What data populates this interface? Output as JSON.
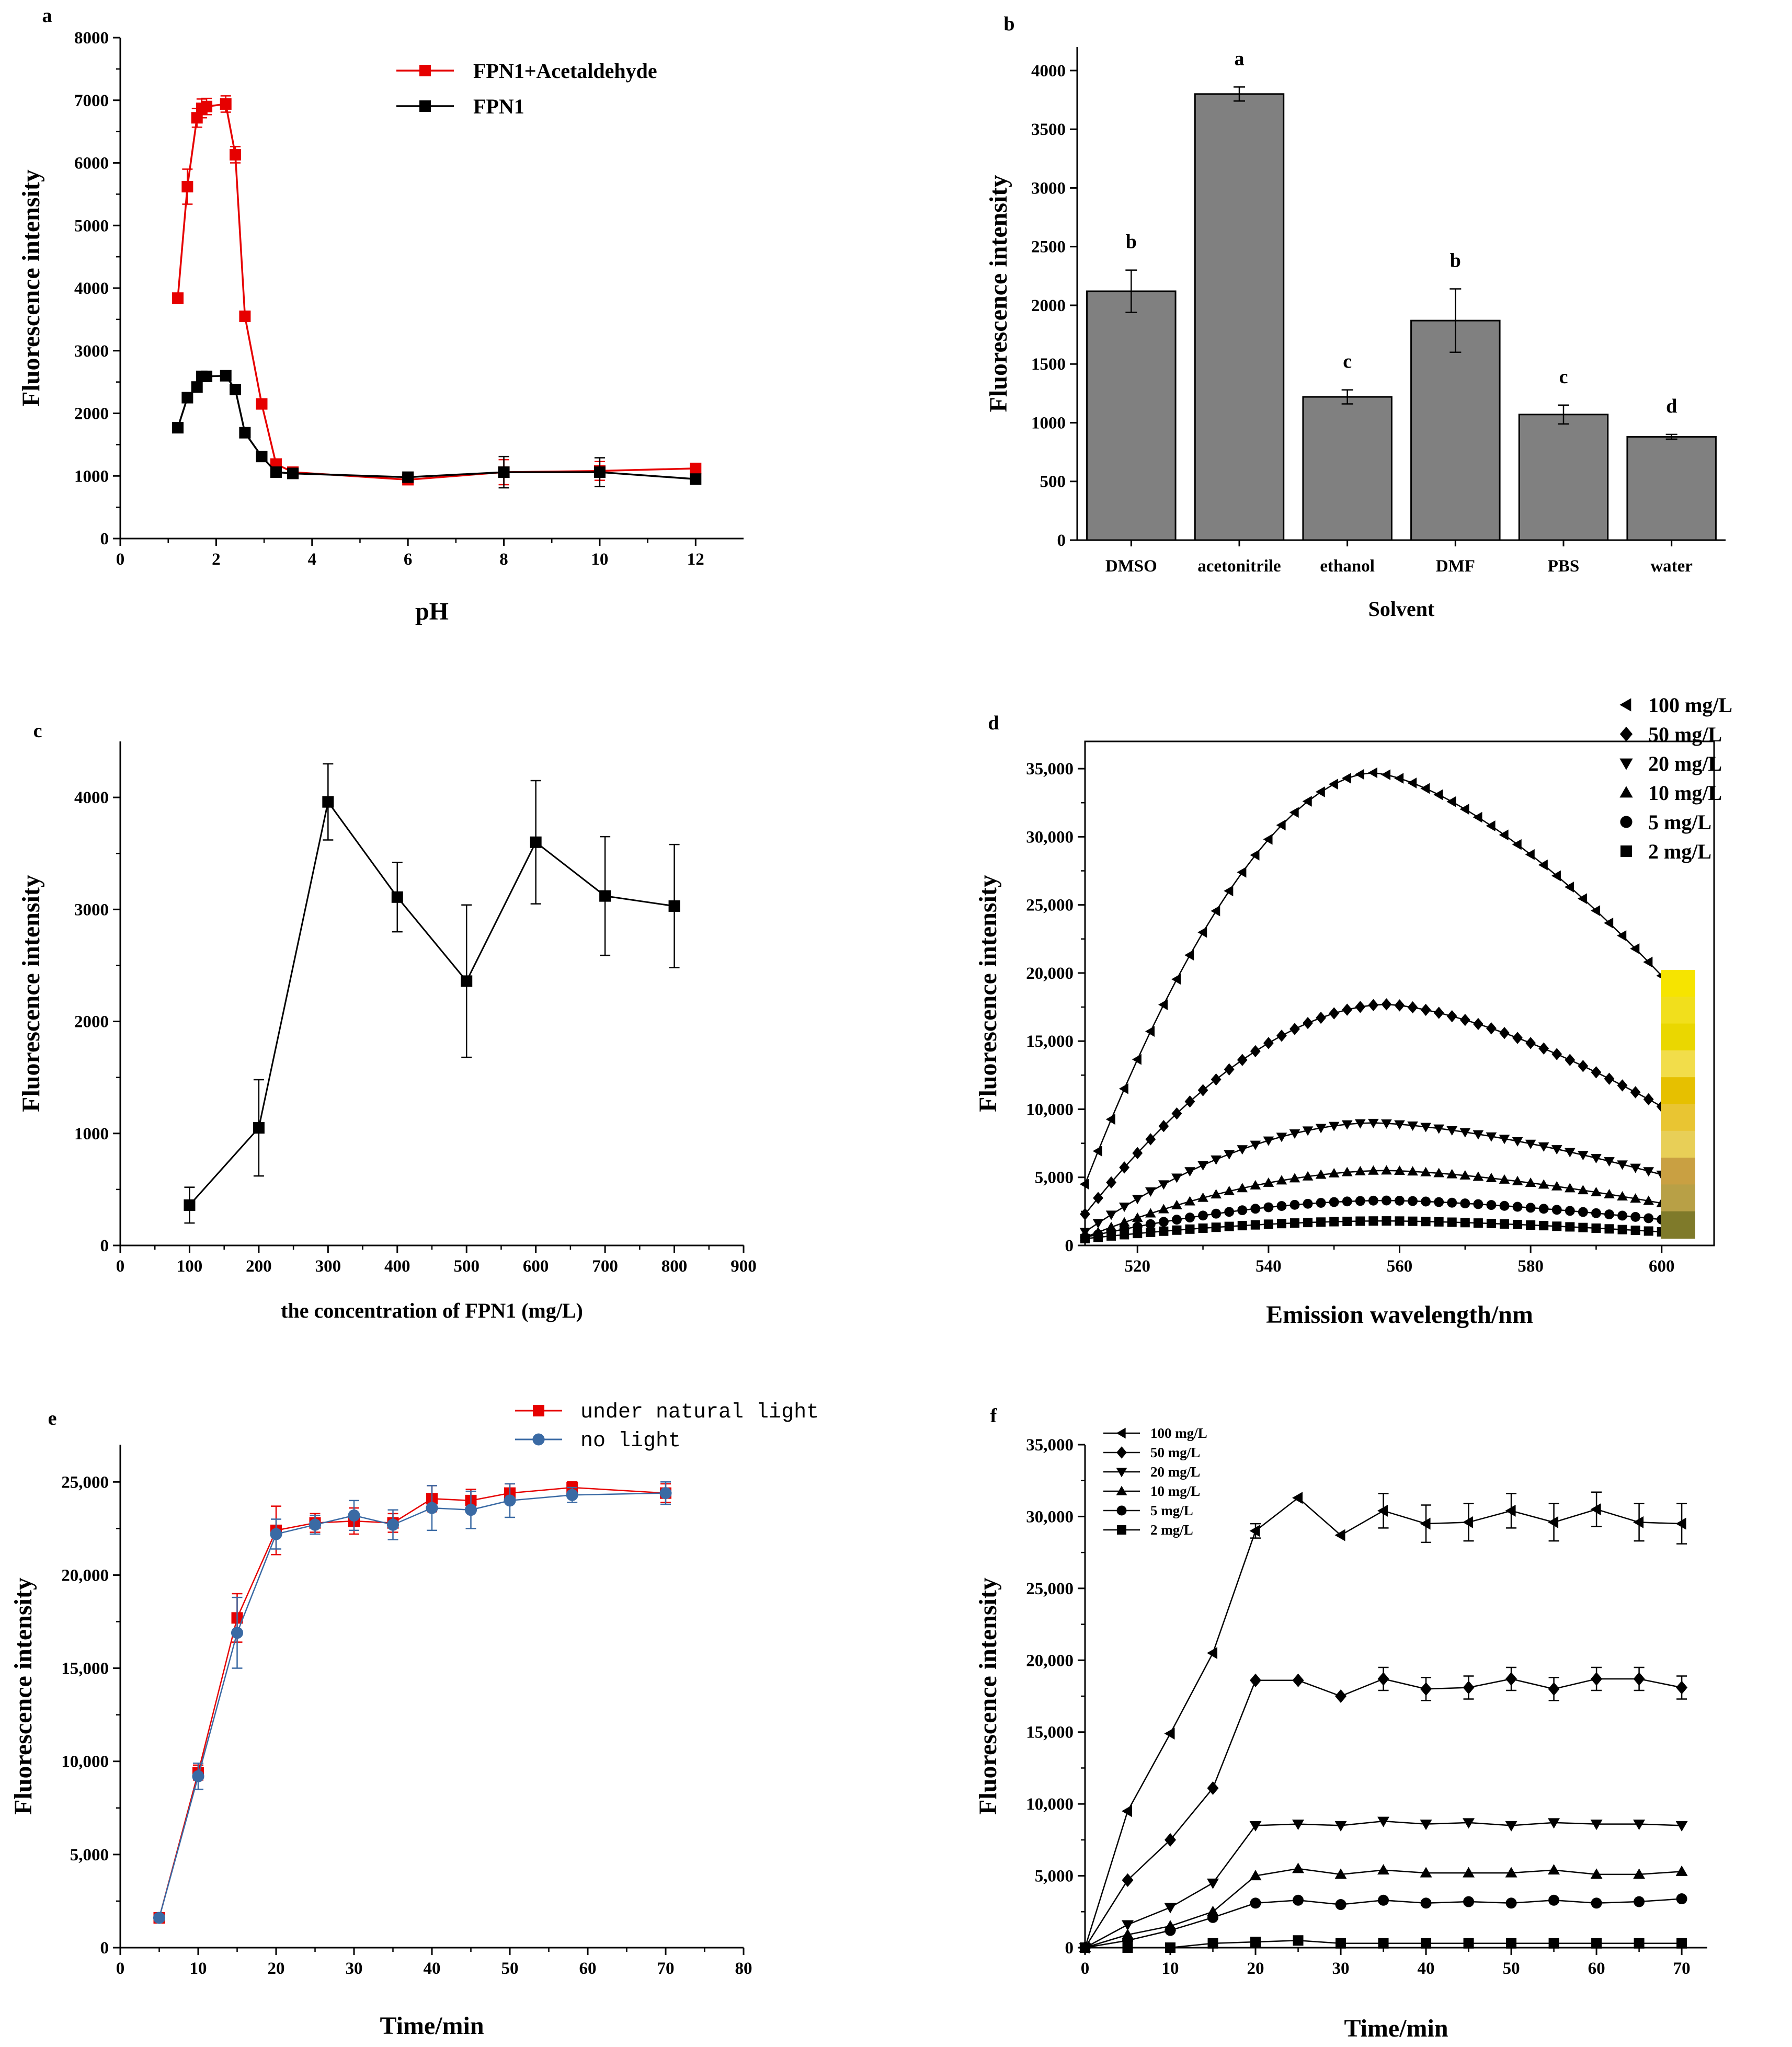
{
  "chart_data": [
    {
      "panel": "a",
      "type": "line",
      "xlabel": "pH",
      "ylabel": "Fluorescence intensity",
      "xlim": [
        0,
        13
      ],
      "ylim": [
        0,
        8000
      ],
      "xticks": [
        0,
        2,
        4,
        6,
        8,
        10,
        12
      ],
      "yticks": [
        0,
        1000,
        2000,
        3000,
        4000,
        5000,
        6000,
        7000,
        8000
      ],
      "legend_position": "top-right",
      "series": [
        {
          "name": "FPN1+Acetaldehyde",
          "color": "#e60000",
          "marker": "square",
          "x": [
            1.2,
            1.4,
            1.6,
            1.7,
            1.8,
            2.2,
            2.4,
            2.6,
            2.95,
            3.25,
            3.6,
            6,
            8,
            10,
            12
          ],
          "y": [
            3840,
            5620,
            6720,
            6870,
            6900,
            6940,
            6130,
            3550,
            2150,
            1190,
            1060,
            940,
            1060,
            1080,
            1120
          ],
          "err": [
            0,
            280,
            150,
            150,
            130,
            130,
            130,
            0,
            0,
            0,
            0,
            70,
            200,
            150,
            0
          ]
        },
        {
          "name": "FPN1",
          "color": "#000000",
          "marker": "square",
          "x": [
            1.2,
            1.4,
            1.6,
            1.7,
            1.8,
            2.2,
            2.4,
            2.6,
            2.95,
            3.25,
            3.6,
            6,
            8,
            10,
            12
          ],
          "y": [
            1770,
            2250,
            2420,
            2590,
            2590,
            2600,
            2380,
            1690,
            1310,
            1060,
            1040,
            980,
            1060,
            1060,
            950
          ],
          "err": [
            0,
            0,
            0,
            0,
            0,
            0,
            0,
            0,
            0,
            0,
            0,
            0,
            250,
            230,
            0
          ]
        }
      ]
    },
    {
      "panel": "b",
      "type": "bar",
      "xlabel": "Solvent",
      "ylabel": "Fluorescence intensity",
      "ylim": [
        0,
        4200
      ],
      "yticks": [
        0,
        500,
        1000,
        1500,
        2000,
        2500,
        3000,
        3500,
        4000
      ],
      "categories": [
        "DMSO",
        "acetonitrile",
        "ethanol",
        "DMF",
        "PBS",
        "water"
      ],
      "values": [
        2120,
        3800,
        1220,
        1870,
        1070,
        880
      ],
      "errors": [
        180,
        60,
        60,
        270,
        80,
        20
      ],
      "labels": [
        "b",
        "a",
        "c",
        "b",
        "c",
        "d"
      ],
      "color": "#808080"
    },
    {
      "panel": "c",
      "type": "line",
      "xlabel": "the concentration of FPN1 (mg/L)",
      "ylabel": "Fluorescence intensity",
      "xlim": [
        0,
        900
      ],
      "ylim": [
        0,
        4500
      ],
      "xticks": [
        0,
        100,
        200,
        300,
        400,
        500,
        600,
        700,
        800,
        900
      ],
      "yticks": [
        0,
        1000,
        2000,
        3000,
        4000
      ],
      "series": [
        {
          "color": "#000000",
          "marker": "square",
          "x": [
            100,
            200,
            300,
            400,
            500,
            600,
            700,
            800
          ],
          "y": [
            360,
            1050,
            3960,
            3110,
            2360,
            3600,
            3120,
            3030
          ],
          "err": [
            160,
            430,
            340,
            310,
            680,
            550,
            530,
            550
          ]
        }
      ]
    },
    {
      "panel": "d",
      "type": "scatter",
      "xlabel": "Emission wavelength/nm",
      "ylabel": "Fluorescence intensity",
      "xlim": [
        512,
        608
      ],
      "ylim": [
        0,
        37000
      ],
      "xticks": [
        520,
        540,
        560,
        580,
        600
      ],
      "yticks": [
        0,
        5000,
        10000,
        15000,
        20000,
        25000,
        30000,
        35000
      ],
      "ytick_labels": [
        "0",
        "5,000",
        "10,000",
        "15,000",
        "20,000",
        "25,000",
        "30,000",
        "35,000"
      ],
      "legend_position": "top-right",
      "x_start": 512,
      "x_step": 2,
      "series": [
        {
          "name": "100 mg/L",
          "marker": "triangle-left",
          "peak": 34700,
          "peak_x": 556,
          "left_value": 4500,
          "right_value": 19800
        },
        {
          "name": "50 mg/L",
          "marker": "diamond",
          "peak": 17700,
          "peak_x": 558,
          "left_value": 2300,
          "right_value": 10200
        },
        {
          "name": "20 mg/L",
          "marker": "triangle-down",
          "peak": 9000,
          "peak_x": 556,
          "left_value": 1000,
          "right_value": 5200
        },
        {
          "name": "10 mg/L",
          "marker": "triangle-up",
          "peak": 5500,
          "peak_x": 558,
          "left_value": 600,
          "right_value": 3100
        },
        {
          "name": "5 mg/L",
          "marker": "circle",
          "peak": 3300,
          "peak_x": 558,
          "left_value": 600,
          "right_value": 1900
        },
        {
          "name": "2 mg/L",
          "marker": "square",
          "peak": 1800,
          "peak_x": 558,
          "left_value": 500,
          "right_value": 1000
        }
      ],
      "swatch_colors": [
        "#f6e400",
        "#f1df1c",
        "#ead700",
        "#f2dd4a",
        "#e6c000",
        "#e9c532",
        "#e8cf57",
        "#c9a042",
        "#b8a046",
        "#7f7a2a"
      ]
    },
    {
      "panel": "e",
      "type": "line",
      "xlabel": "Time/min",
      "ylabel": "Fluorescence intensity",
      "xlim": [
        0,
        80
      ],
      "ylim": [
        0,
        27000
      ],
      "xticks": [
        0,
        10,
        20,
        30,
        40,
        50,
        60,
        70,
        80
      ],
      "yticks": [
        0,
        5000,
        10000,
        15000,
        20000,
        25000
      ],
      "ytick_labels": [
        "0",
        "5,000",
        "10,000",
        "15,000",
        "20,000",
        "25,000"
      ],
      "legend_position": "top-right",
      "series": [
        {
          "name": "under natural light",
          "color": "#e60000",
          "marker": "square",
          "x": [
            5,
            10,
            15,
            20,
            25,
            30,
            35,
            40,
            45,
            50,
            58,
            70
          ],
          "y": [
            1600,
            9400,
            17700,
            22400,
            22800,
            22900,
            22800,
            24100,
            24000,
            24400,
            24700,
            24400
          ],
          "err": [
            150,
            400,
            1300,
            1300,
            500,
            700,
            500,
            700,
            600,
            500,
            300,
            500
          ]
        },
        {
          "name": "no light",
          "color": "#3a6aa4",
          "marker": "circle",
          "x": [
            5,
            10,
            15,
            20,
            25,
            30,
            35,
            40,
            45,
            50,
            58,
            70
          ],
          "y": [
            1600,
            9200,
            16900,
            22200,
            22700,
            23200,
            22700,
            23600,
            23500,
            24000,
            24300,
            24400
          ],
          "err": [
            150,
            700,
            1900,
            800,
            500,
            800,
            800,
            1200,
            1000,
            900,
            400,
            600
          ]
        }
      ]
    },
    {
      "panel": "f",
      "type": "line",
      "xlabel": "Time/min",
      "ylabel": "Fluorescence intensity",
      "xlim": [
        0,
        73
      ],
      "ylim": [
        0,
        35000
      ],
      "xticks": [
        0,
        10,
        20,
        30,
        40,
        50,
        60,
        70
      ],
      "yticks": [
        0,
        5000,
        10000,
        15000,
        20000,
        25000,
        30000,
        35000
      ],
      "ytick_labels": [
        "0",
        "5,000",
        "10,000",
        "15,000",
        "20,000",
        "25,000",
        "30,000",
        "35,000"
      ],
      "legend_position": "top-left",
      "x": [
        0,
        5,
        10,
        15,
        20,
        25,
        30,
        35,
        40,
        45,
        50,
        55,
        60,
        65,
        70
      ],
      "series": [
        {
          "name": "100 mg/L",
          "marker": "triangle-left",
          "y": [
            0,
            9500,
            14900,
            20500,
            29000,
            31300,
            28700,
            30400,
            29500,
            29600,
            30400,
            29600,
            30500,
            29600,
            29500
          ],
          "err": [
            0,
            0,
            0,
            0,
            500,
            0,
            0,
            1200,
            1300,
            1300,
            1200,
            1300,
            1200,
            1300,
            1400
          ]
        },
        {
          "name": "50 mg/L",
          "marker": "diamond",
          "y": [
            0,
            4700,
            7500,
            11100,
            18600,
            18600,
            17500,
            18700,
            18000,
            18100,
            18700,
            18000,
            18700,
            18700,
            18100
          ],
          "err": [
            0,
            0,
            0,
            0,
            0,
            0,
            0,
            800,
            800,
            800,
            800,
            800,
            800,
            800,
            800
          ]
        },
        {
          "name": "20 mg/L",
          "marker": "triangle-down",
          "y": [
            0,
            1600,
            2800,
            4500,
            8500,
            8600,
            8500,
            8800,
            8600,
            8700,
            8500,
            8700,
            8600,
            8600,
            8500
          ],
          "err": [
            0,
            0,
            0,
            0,
            0,
            0,
            0,
            0,
            0,
            0,
            0,
            0,
            0,
            0,
            0
          ]
        },
        {
          "name": "10 mg/L",
          "marker": "triangle-up",
          "y": [
            0,
            900,
            1500,
            2500,
            5000,
            5500,
            5100,
            5400,
            5200,
            5200,
            5200,
            5400,
            5100,
            5100,
            5300
          ],
          "err": [
            0,
            0,
            0,
            0,
            0,
            0,
            0,
            0,
            0,
            0,
            0,
            0,
            0,
            0,
            0
          ]
        },
        {
          "name": "5 mg/L",
          "marker": "circle",
          "y": [
            0,
            500,
            1200,
            2100,
            3100,
            3300,
            3000,
            3300,
            3100,
            3200,
            3100,
            3300,
            3100,
            3200,
            3400
          ],
          "err": [
            0,
            0,
            0,
            0,
            0,
            0,
            0,
            0,
            0,
            0,
            0,
            0,
            0,
            0,
            0
          ]
        },
        {
          "name": "2 mg/L",
          "marker": "square",
          "y": [
            0,
            0,
            0,
            300,
            400,
            500,
            300,
            300,
            300,
            300,
            300,
            300,
            300,
            300,
            300
          ],
          "err": [
            0,
            0,
            0,
            0,
            0,
            0,
            0,
            0,
            0,
            0,
            0,
            0,
            0,
            0,
            0
          ]
        }
      ]
    }
  ]
}
